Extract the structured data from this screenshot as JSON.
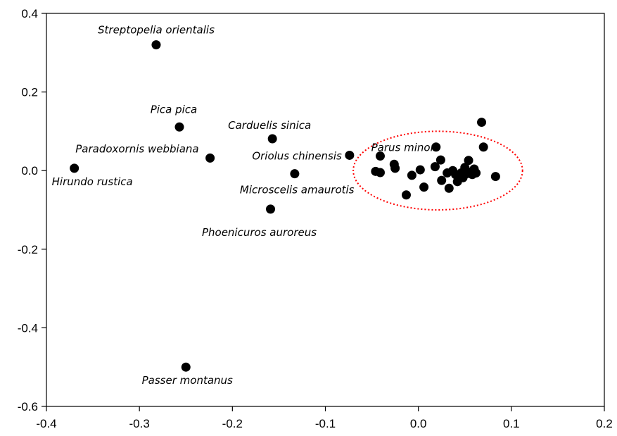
{
  "chart_data": {
    "type": "scatter",
    "title": "",
    "xlabel": "",
    "ylabel": "",
    "xlim": [
      -0.4,
      0.2
    ],
    "ylim": [
      -0.6,
      0.4
    ],
    "x_ticks": [
      "-0.4",
      "-0.3",
      "-0.2",
      "-0.1",
      "0.0",
      "0.1",
      "0.2"
    ],
    "y_ticks": [
      "0.4",
      "0.2",
      "0.0",
      "-0.2",
      "-0.4",
      "-0.6"
    ],
    "grid": false,
    "point_color": "#000000",
    "labeled_points": [
      {
        "name": "Streptopelia orientalis",
        "x": -0.282,
        "y": 0.32
      },
      {
        "name": "Pica pica",
        "x": -0.257,
        "y": 0.111
      },
      {
        "name": "Paradoxornis webbiana",
        "x": -0.224,
        "y": 0.032
      },
      {
        "name": "Hirundo rustica",
        "x": -0.37,
        "y": 0.006
      },
      {
        "name": "Carduelis sinica",
        "x": -0.157,
        "y": 0.081
      },
      {
        "name": "Oriolus chinensis",
        "x": -0.074,
        "y": 0.039
      },
      {
        "name": "Microscelis amaurotis",
        "x": -0.133,
        "y": -0.008
      },
      {
        "name": "Phoenicuros auroreus",
        "x": -0.159,
        "y": -0.098
      },
      {
        "name": "Parus minor",
        "x": 0.019,
        "y": 0.06
      },
      {
        "name": "Passer montanus",
        "x": -0.25,
        "y": -0.5
      }
    ],
    "cluster_points": [
      {
        "x": -0.041,
        "y": 0.037
      },
      {
        "x": -0.046,
        "y": -0.002
      },
      {
        "x": -0.041,
        "y": -0.005
      },
      {
        "x": -0.026,
        "y": 0.016
      },
      {
        "x": -0.025,
        "y": 0.006
      },
      {
        "x": -0.013,
        "y": -0.062
      },
      {
        "x": -0.007,
        "y": -0.012
      },
      {
        "x": 0.002,
        "y": 0.002
      },
      {
        "x": 0.006,
        "y": -0.042
      },
      {
        "x": 0.018,
        "y": 0.01
      },
      {
        "x": 0.024,
        "y": 0.027
      },
      {
        "x": 0.025,
        "y": -0.025
      },
      {
        "x": 0.031,
        "y": -0.006
      },
      {
        "x": 0.033,
        "y": -0.045
      },
      {
        "x": 0.037,
        "y": 0.0
      },
      {
        "x": 0.04,
        "y": -0.01
      },
      {
        "x": 0.042,
        "y": -0.028
      },
      {
        "x": 0.046,
        "y": -0.006
      },
      {
        "x": 0.048,
        "y": -0.018
      },
      {
        "x": 0.05,
        "y": 0.008
      },
      {
        "x": 0.052,
        "y": -0.008
      },
      {
        "x": 0.054,
        "y": 0.026
      },
      {
        "x": 0.056,
        "y": -0.004
      },
      {
        "x": 0.058,
        "y": -0.01
      },
      {
        "x": 0.06,
        "y": 0.004
      },
      {
        "x": 0.062,
        "y": -0.006
      },
      {
        "x": 0.068,
        "y": 0.123
      },
      {
        "x": 0.07,
        "y": 0.06
      },
      {
        "x": 0.083,
        "y": -0.015
      }
    ],
    "highlight_ellipse": {
      "cx": 0.021,
      "cy": 0.0,
      "rx": 0.091,
      "ry": 0.1,
      "color": "#ff0000",
      "style": "dotted"
    }
  }
}
